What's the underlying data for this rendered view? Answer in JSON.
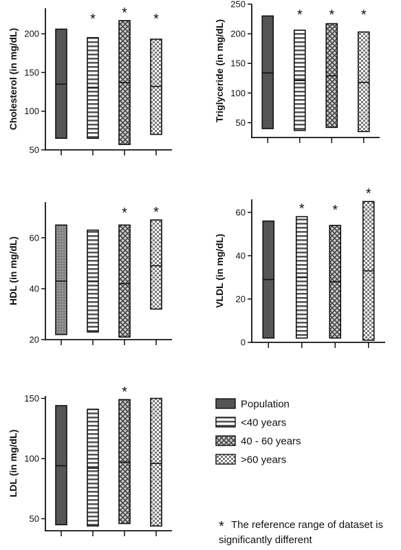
{
  "chart_data": [
    {
      "type": "floating-bar",
      "ylabel": "Cholesterol (in mg/dL)",
      "yticks": [
        50,
        100,
        150,
        200
      ],
      "ylim": [
        50,
        233
      ],
      "bars": [
        {
          "group": "Population",
          "min": 65,
          "max": 206,
          "median": 135,
          "significant": false
        },
        {
          "group": "<40 years",
          "min": 65,
          "max": 195,
          "median": 130,
          "significant": true
        },
        {
          "group": "40 - 60 years",
          "min": 57,
          "max": 217,
          "median": 137,
          "significant": true
        },
        {
          "group": ">60 years",
          "min": 70,
          "max": 193,
          "median": 132,
          "significant": true
        }
      ]
    },
    {
      "type": "floating-bar",
      "ylabel": "Triglyceride (in mg/dL)",
      "yticks": [
        50,
        100,
        150,
        200,
        250
      ],
      "ylim": [
        25,
        250
      ],
      "bars": [
        {
          "group": "Population",
          "min": 40,
          "max": 230,
          "median": 134,
          "significant": false
        },
        {
          "group": "<40 years",
          "min": 37,
          "max": 206,
          "median": 121,
          "significant": true
        },
        {
          "group": "40 - 60 years",
          "min": 42,
          "max": 217,
          "median": 129,
          "significant": true
        },
        {
          "group": ">60 years",
          "min": 35,
          "max": 203,
          "median": 118,
          "significant": true
        }
      ]
    },
    {
      "type": "floating-bar",
      "ylabel": "HDL (in mg/dL)",
      "yticks": [
        20,
        40,
        60
      ],
      "ylim": [
        20,
        74
      ],
      "bars": [
        {
          "group": "Population",
          "min": 22,
          "max": 65,
          "median": 43,
          "significant": false
        },
        {
          "group": "<40 years",
          "min": 23,
          "max": 63,
          "median": 43,
          "significant": false
        },
        {
          "group": "40 - 60 years",
          "min": 21,
          "max": 65,
          "median": 42,
          "significant": true
        },
        {
          "group": ">60 years",
          "min": 32,
          "max": 67,
          "median": 49,
          "significant": true
        }
      ]
    },
    {
      "type": "floating-bar",
      "ylabel": "VLDL (in mg/dL)",
      "yticks": [
        0,
        20,
        40,
        60
      ],
      "ylim": [
        0,
        66
      ],
      "bars": [
        {
          "group": "Population",
          "min": 2,
          "max": 56,
          "median": 29,
          "significant": false
        },
        {
          "group": "<40 years",
          "min": 2,
          "max": 58,
          "median": 30,
          "significant": true
        },
        {
          "group": "40 - 60 years",
          "min": 2,
          "max": 54,
          "median": 28,
          "significant": true
        },
        {
          "group": ">60 years",
          "min": 1,
          "max": 65,
          "median": 33,
          "significant": true
        }
      ]
    },
    {
      "type": "floating-bar",
      "ylabel": "LDL (in mg/dL)",
      "yticks": [
        50,
        100,
        150
      ],
      "ylim": [
        40,
        152
      ],
      "bars": [
        {
          "group": "Population",
          "min": 45,
          "max": 144,
          "median": 94,
          "significant": false
        },
        {
          "group": "<40 years",
          "min": 44,
          "max": 141,
          "median": 92,
          "significant": false
        },
        {
          "group": "40 - 60 years",
          "min": 46,
          "max": 149,
          "median": 97,
          "significant": true
        },
        {
          "group": ">60 years",
          "min": 44,
          "max": 150,
          "median": 96,
          "significant": false
        }
      ]
    }
  ],
  "legend": [
    {
      "label": "Population",
      "pattern": "solid"
    },
    {
      "label": "<40 years",
      "pattern": "horizontal-stripes"
    },
    {
      "label": "40 - 60 years",
      "pattern": "crosshatch"
    },
    {
      "label": ">60 years",
      "pattern": "checker"
    }
  ],
  "significance_marker": "*",
  "footnote": {
    "marker": "*",
    "line1": "The reference range of dataset is",
    "line2": "significantly different"
  },
  "colors": {
    "population_fill": "#555555",
    "stroke": "#111111",
    "background": "#ffffff"
  }
}
